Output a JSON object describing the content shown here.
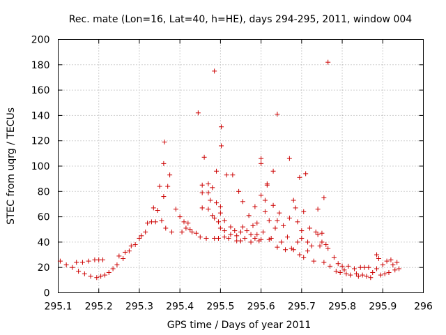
{
  "chart_data": {
    "type": "scatter",
    "title": "Rec. mate (Lon=16, Lat=40, h=HE), days 294-295, 2011, window 004",
    "xlabel": "GPS time / Days of year 2011",
    "ylabel": "STEC from uqrg / TECUs",
    "xlim": [
      295.1,
      296
    ],
    "ylim": [
      0,
      200
    ],
    "x_ticks": [
      "295.1",
      "295.2",
      "295.3",
      "295.4",
      "295.5",
      "295.6",
      "295.7",
      "295.8",
      "295.9",
      "296"
    ],
    "y_ticks": [
      "0",
      "20",
      "40",
      "60",
      "80",
      "100",
      "120",
      "140",
      "160",
      "180",
      "200"
    ],
    "grid": true,
    "legend": "none",
    "marker": "+",
    "color": "#cc0000",
    "points": [
      [
        295.105,
        25
      ],
      [
        295.12,
        22
      ],
      [
        295.135,
        20
      ],
      [
        295.145,
        24
      ],
      [
        295.15,
        17
      ],
      [
        295.16,
        24
      ],
      [
        295.165,
        15
      ],
      [
        295.175,
        25
      ],
      [
        295.18,
        13
      ],
      [
        295.19,
        26
      ],
      [
        295.195,
        12
      ],
      [
        295.2,
        26
      ],
      [
        295.205,
        13
      ],
      [
        295.21,
        26
      ],
      [
        295.215,
        14
      ],
      [
        295.225,
        16
      ],
      [
        295.235,
        19
      ],
      [
        295.245,
        22
      ],
      [
        295.25,
        29
      ],
      [
        295.26,
        27
      ],
      [
        295.265,
        32
      ],
      [
        295.275,
        33
      ],
      [
        295.28,
        37
      ],
      [
        295.29,
        38
      ],
      [
        295.3,
        43
      ],
      [
        295.305,
        45
      ],
      [
        295.315,
        48
      ],
      [
        295.32,
        55
      ],
      [
        295.33,
        56
      ],
      [
        295.335,
        67
      ],
      [
        295.34,
        56
      ],
      [
        295.345,
        65
      ],
      [
        295.35,
        84
      ],
      [
        295.355,
        57
      ],
      [
        295.36,
        76
      ],
      [
        295.36,
        102
      ],
      [
        295.362,
        119
      ],
      [
        295.365,
        51
      ],
      [
        295.37,
        84
      ],
      [
        295.375,
        93
      ],
      [
        295.38,
        48
      ],
      [
        295.39,
        66
      ],
      [
        295.4,
        60
      ],
      [
        295.405,
        48
      ],
      [
        295.41,
        56
      ],
      [
        295.415,
        51
      ],
      [
        295.42,
        55
      ],
      [
        295.425,
        50
      ],
      [
        295.43,
        48
      ],
      [
        295.44,
        47
      ],
      [
        295.445,
        142
      ],
      [
        295.45,
        44
      ],
      [
        295.455,
        67
      ],
      [
        295.455,
        79
      ],
      [
        295.455,
        85
      ],
      [
        295.46,
        107
      ],
      [
        295.465,
        43
      ],
      [
        295.47,
        66
      ],
      [
        295.47,
        79
      ],
      [
        295.47,
        86
      ],
      [
        295.475,
        73
      ],
      [
        295.48,
        83
      ],
      [
        295.48,
        61
      ],
      [
        295.485,
        43
      ],
      [
        295.485,
        59
      ],
      [
        295.485,
        175
      ],
      [
        295.49,
        96
      ],
      [
        295.49,
        71
      ],
      [
        295.495,
        43
      ],
      [
        295.495,
        56
      ],
      [
        295.5,
        51
      ],
      [
        295.5,
        63
      ],
      [
        295.5,
        68
      ],
      [
        295.502,
        131
      ],
      [
        295.502,
        116
      ],
      [
        295.51,
        44
      ],
      [
        295.51,
        49
      ],
      [
        295.51,
        57
      ],
      [
        295.515,
        93
      ],
      [
        295.52,
        43
      ],
      [
        295.525,
        46
      ],
      [
        295.525,
        52
      ],
      [
        295.53,
        93
      ],
      [
        295.535,
        49
      ],
      [
        295.54,
        41
      ],
      [
        295.54,
        45
      ],
      [
        295.545,
        80
      ],
      [
        295.55,
        41
      ],
      [
        295.55,
        48
      ],
      [
        295.555,
        52
      ],
      [
        295.555,
        72
      ],
      [
        295.56,
        43
      ],
      [
        295.565,
        49
      ],
      [
        295.57,
        61
      ],
      [
        295.575,
        40
      ],
      [
        295.575,
        46
      ],
      [
        295.58,
        53
      ],
      [
        295.585,
        68
      ],
      [
        295.585,
        43
      ],
      [
        295.59,
        46
      ],
      [
        295.59,
        55
      ],
      [
        295.595,
        41
      ],
      [
        295.6,
        42
      ],
      [
        295.6,
        77
      ],
      [
        295.6,
        102
      ],
      [
        295.6,
        106
      ],
      [
        295.605,
        48
      ],
      [
        295.61,
        64
      ],
      [
        295.61,
        73
      ],
      [
        295.615,
        86
      ],
      [
        295.615,
        85
      ],
      [
        295.62,
        42
      ],
      [
        295.62,
        57
      ],
      [
        295.625,
        43
      ],
      [
        295.63,
        96
      ],
      [
        295.63,
        69
      ],
      [
        295.635,
        51
      ],
      [
        295.64,
        57
      ],
      [
        295.64,
        141
      ],
      [
        295.64,
        36
      ],
      [
        295.645,
        63
      ],
      [
        295.65,
        40
      ],
      [
        295.655,
        53
      ],
      [
        295.66,
        34
      ],
      [
        295.665,
        44
      ],
      [
        295.67,
        59
      ],
      [
        295.67,
        106
      ],
      [
        295.675,
        35
      ],
      [
        295.68,
        34
      ],
      [
        295.68,
        73
      ],
      [
        295.685,
        67
      ],
      [
        295.69,
        40
      ],
      [
        295.69,
        56
      ],
      [
        295.695,
        91
      ],
      [
        295.695,
        30
      ],
      [
        295.7,
        49
      ],
      [
        295.7,
        43
      ],
      [
        295.705,
        64
      ],
      [
        295.705,
        28
      ],
      [
        295.71,
        94
      ],
      [
        295.715,
        40
      ],
      [
        295.715,
        33
      ],
      [
        295.72,
        51
      ],
      [
        295.725,
        37
      ],
      [
        295.73,
        25
      ],
      [
        295.735,
        48
      ],
      [
        295.74,
        66
      ],
      [
        295.74,
        46
      ],
      [
        295.745,
        37
      ],
      [
        295.75,
        47
      ],
      [
        295.75,
        40
      ],
      [
        295.755,
        75
      ],
      [
        295.755,
        24
      ],
      [
        295.76,
        38
      ],
      [
        295.765,
        182
      ],
      [
        295.765,
        35
      ],
      [
        295.77,
        21
      ],
      [
        295.78,
        28
      ],
      [
        295.785,
        17
      ],
      [
        295.79,
        23
      ],
      [
        295.795,
        16
      ],
      [
        295.8,
        21
      ],
      [
        295.805,
        18
      ],
      [
        295.81,
        15
      ],
      [
        295.815,
        21
      ],
      [
        295.82,
        14
      ],
      [
        295.83,
        19
      ],
      [
        295.835,
        15
      ],
      [
        295.84,
        13
      ],
      [
        295.845,
        20
      ],
      [
        295.85,
        14
      ],
      [
        295.855,
        20
      ],
      [
        295.86,
        13
      ],
      [
        295.865,
        20
      ],
      [
        295.87,
        12
      ],
      [
        295.875,
        16
      ],
      [
        295.885,
        19
      ],
      [
        295.885,
        30
      ],
      [
        295.89,
        27
      ],
      [
        295.895,
        14
      ],
      [
        295.9,
        22
      ],
      [
        295.905,
        15
      ],
      [
        295.91,
        25
      ],
      [
        295.915,
        16
      ],
      [
        295.92,
        26
      ],
      [
        295.925,
        22
      ],
      [
        295.93,
        18
      ],
      [
        295.935,
        24
      ],
      [
        295.94,
        19
      ]
    ]
  }
}
